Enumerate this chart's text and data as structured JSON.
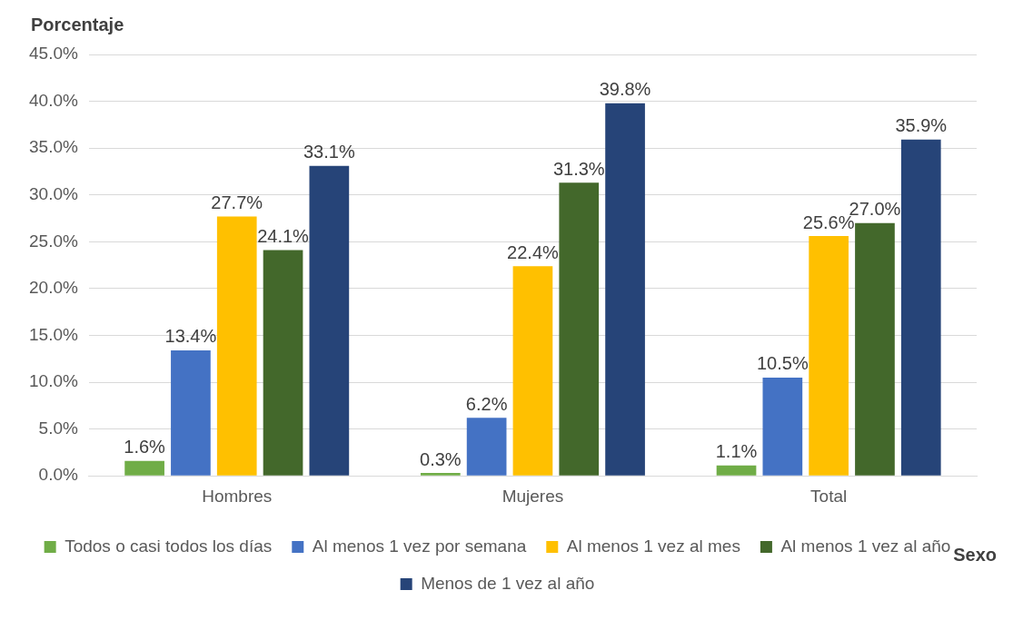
{
  "chart_data": {
    "type": "bar",
    "ylabel": "Porcentaje",
    "xlabel": "Sexo",
    "categories": [
      "Hombres",
      "Mujeres",
      "Total"
    ],
    "series": [
      {
        "name": "Todos o casi todos los días",
        "color": "#70ad47",
        "values": [
          1.6,
          0.3,
          1.1
        ],
        "value_labels": [
          "1.6%",
          "0.3%",
          "1.1%"
        ]
      },
      {
        "name": "Al menos 1 vez por semana",
        "color": "#4472c4",
        "values": [
          13.4,
          6.2,
          10.5
        ],
        "value_labels": [
          "13.4%",
          "6.2%",
          "10.5%"
        ]
      },
      {
        "name": "Al menos 1 vez al mes",
        "color": "#ffc000",
        "values": [
          27.7,
          22.4,
          25.6
        ],
        "value_labels": [
          "27.7%",
          "22.4%",
          "25.6%"
        ]
      },
      {
        "name": "Al menos 1 vez al año",
        "color": "#43682b",
        "values": [
          24.1,
          31.3,
          27.0
        ],
        "value_labels": [
          "24.1%",
          "31.3%",
          "27.0%"
        ]
      },
      {
        "name": "Menos de 1 vez al año",
        "color": "#264478",
        "values": [
          33.1,
          39.8,
          35.9
        ],
        "value_labels": [
          "33.1%",
          "39.8%",
          "35.9%"
        ]
      }
    ],
    "ylim": [
      0,
      45
    ],
    "yticks": [
      {
        "value": 0,
        "label": "0.0%"
      },
      {
        "value": 5,
        "label": "5.0%"
      },
      {
        "value": 10,
        "label": "10.0%"
      },
      {
        "value": 15,
        "label": "15.0%"
      },
      {
        "value": 20,
        "label": "20.0%"
      },
      {
        "value": 25,
        "label": "25.0%"
      },
      {
        "value": 30,
        "label": "30.0%"
      },
      {
        "value": 35,
        "label": "35.0%"
      },
      {
        "value": 40,
        "label": "40.0%"
      },
      {
        "value": 45,
        "label": "45.0%"
      }
    ],
    "grid": "y",
    "legend": "bottom"
  }
}
